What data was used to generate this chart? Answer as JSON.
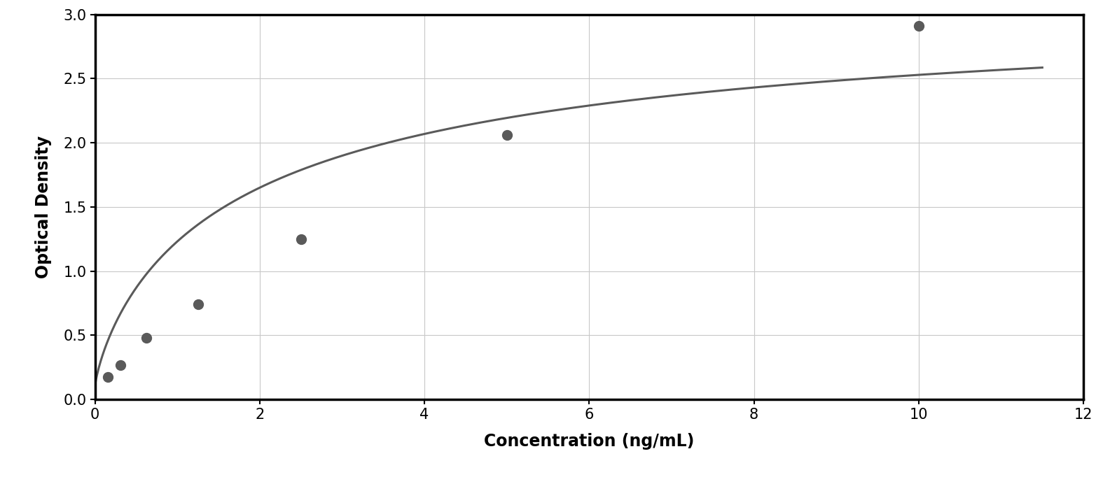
{
  "x_data": [
    0.156,
    0.313,
    0.625,
    1.25,
    2.5,
    5.0,
    10.0
  ],
  "y_data": [
    0.175,
    0.265,
    0.48,
    0.74,
    1.25,
    2.06,
    2.91
  ],
  "xlabel": "Concentration (ng/mL)",
  "ylabel": "Optical Density",
  "xlim": [
    0,
    12
  ],
  "ylim": [
    0,
    3
  ],
  "xticks": [
    0,
    2,
    4,
    6,
    8,
    10,
    12
  ],
  "yticks": [
    0,
    0.5,
    1.0,
    1.5,
    2.0,
    2.5,
    3.0
  ],
  "data_color": "#5a5a5a",
  "line_color": "#5a5a5a",
  "background_color": "#ffffff",
  "plot_bg_color": "#ffffff",
  "grid_color": "#c8c8c8",
  "xlabel_fontsize": 17,
  "ylabel_fontsize": 17,
  "tick_fontsize": 15,
  "marker_size": 10,
  "line_width": 2.2,
  "figure_width": 15.95,
  "figure_height": 6.92
}
